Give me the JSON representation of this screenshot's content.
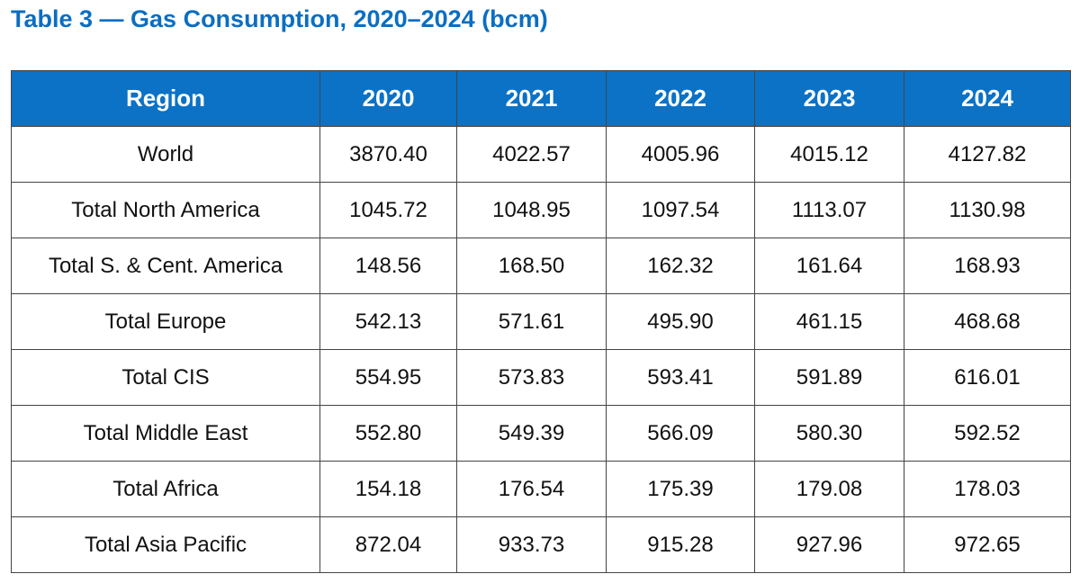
{
  "title": "Table 3 — Gas Consumption, 2020–2024 (bcm)",
  "table": {
    "headers": [
      "Region",
      "2020",
      "2021",
      "2022",
      "2023",
      "2024"
    ],
    "rows": [
      [
        "World",
        "3870.40",
        "4022.57",
        "4005.96",
        "4015.12",
        "4127.82"
      ],
      [
        "Total North America",
        "1045.72",
        "1048.95",
        "1097.54",
        "1113.07",
        "1130.98"
      ],
      [
        "Total S. & Cent. America",
        "148.56",
        "168.50",
        "162.32",
        "161.64",
        "168.93"
      ],
      [
        "Total Europe",
        "542.13",
        "571.61",
        "495.90",
        "461.15",
        "468.68"
      ],
      [
        "Total CIS",
        "554.95",
        "573.83",
        "593.41",
        "591.89",
        "616.01"
      ],
      [
        "Total Middle East",
        "552.80",
        "549.39",
        "566.09",
        "580.30",
        "592.52"
      ],
      [
        "Total Africa",
        "154.18",
        "176.54",
        "175.39",
        "179.08",
        "178.03"
      ],
      [
        "Total Asia Pacific",
        "872.04",
        "933.73",
        "915.28",
        "927.96",
        "972.65"
      ]
    ]
  },
  "colors": {
    "title": "#0b6ec1",
    "header_bg": "#0b72c6",
    "header_text": "#ffffff",
    "border": "#444444"
  }
}
